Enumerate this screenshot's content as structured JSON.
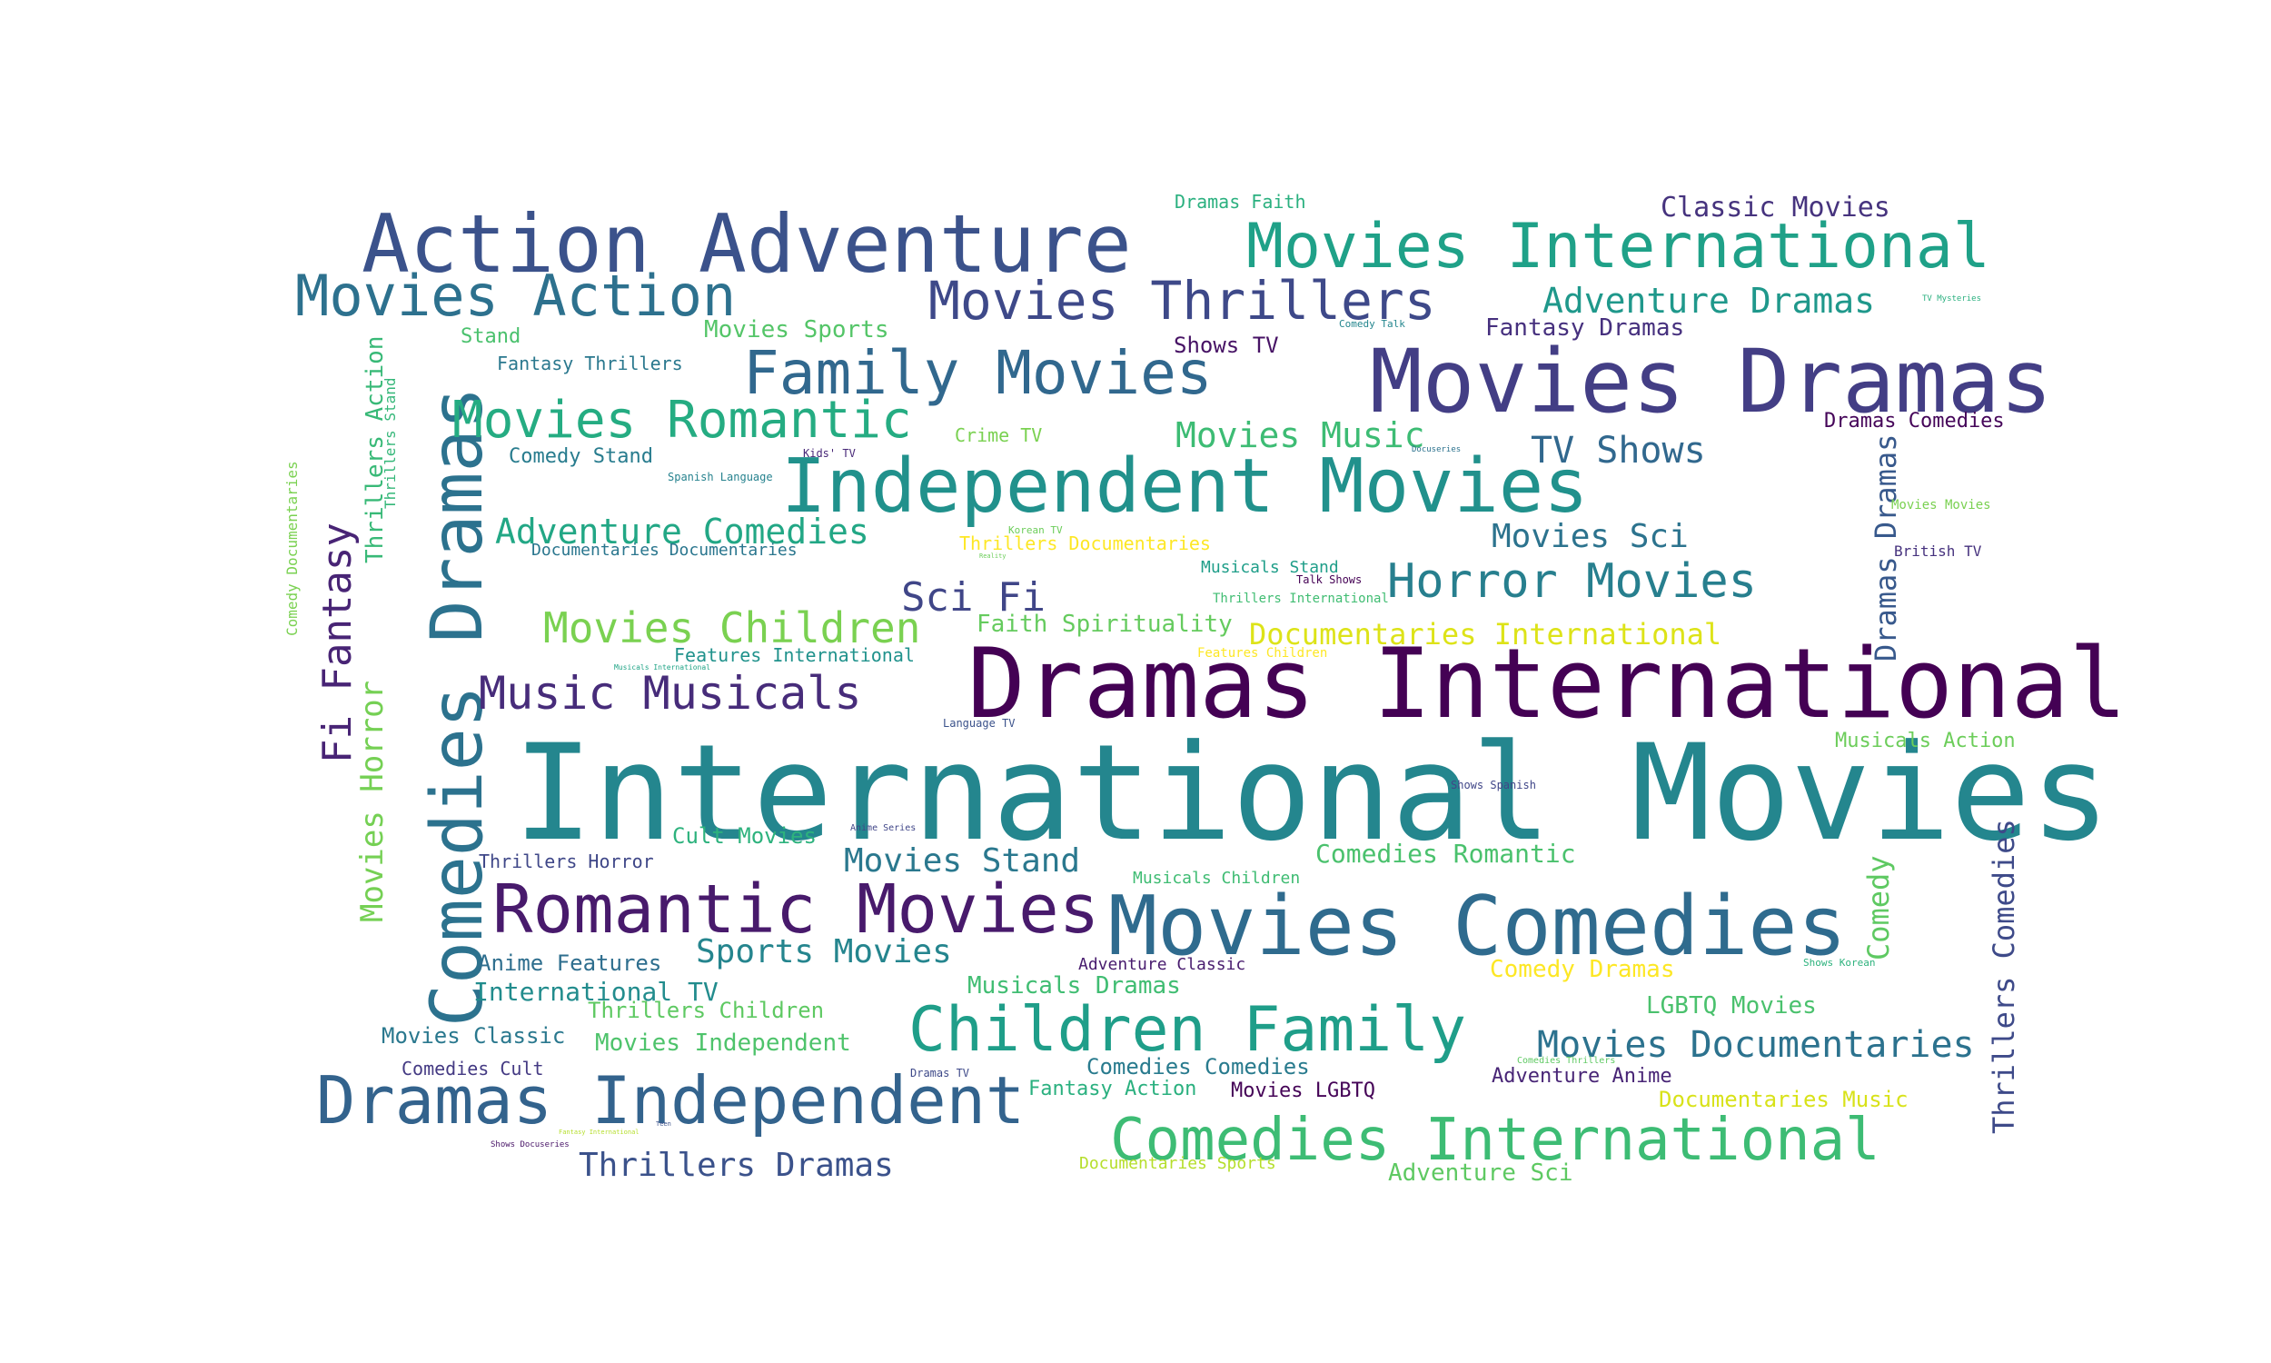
{
  "words": [
    {
      "text": "International Movies",
      "color": "#24868e"
    },
    {
      "text": "Dramas International",
      "color": "#440154"
    },
    {
      "text": "Movies Dramas",
      "color": "#433e85"
    },
    {
      "text": "Movies Comedies",
      "color": "#2f6b8e"
    },
    {
      "text": "Action Adventure",
      "color": "#3b528b"
    },
    {
      "text": "Independent Movies",
      "color": "#21918c"
    },
    {
      "text": "Comedies Dramas",
      "color": "#2c728e"
    },
    {
      "text": "Movies International",
      "color": "#1fa188"
    },
    {
      "text": "Romantic Movies",
      "color": "#481a6c"
    },
    {
      "text": "Dramas Independent",
      "color": "#33638d"
    },
    {
      "text": "Children Family",
      "color": "#1f9e89"
    },
    {
      "text": "Comedies International",
      "color": "#3dbc74"
    },
    {
      "text": "Family Movies",
      "color": "#31688e"
    },
    {
      "text": "Movies Thrillers",
      "color": "#3e4989"
    },
    {
      "text": "Movies Action",
      "color": "#2d718e"
    },
    {
      "text": "Movies Romantic",
      "color": "#25ac82"
    },
    {
      "text": "Music Musicals",
      "color": "#472c7a"
    },
    {
      "text": "Horror Movies",
      "color": "#277f8e"
    },
    {
      "text": "Movies Children",
      "color": "#7ad151"
    },
    {
      "text": "Sci Fi",
      "color": "#404688"
    },
    {
      "text": "Movies Documentaries",
      "color": "#2c728e"
    },
    {
      "text": "Fi Fantasy",
      "color": "#482475"
    },
    {
      "text": "Adventure Comedies",
      "color": "#22a785"
    },
    {
      "text": "Movies Horror",
      "color": "#75d054"
    },
    {
      "text": "Thrillers Comedies",
      "color": "#3e4a89"
    },
    {
      "text": "Dramas Dramas",
      "color": "#38598c"
    },
    {
      "text": "Sports Movies",
      "color": "#25858e"
    },
    {
      "text": "Movies Stand",
      "color": "#2a788e"
    },
    {
      "text": "Thrillers Dramas",
      "color": "#3b528b"
    },
    {
      "text": "TV Shows",
      "color": "#31688e"
    },
    {
      "text": "Movies Sci",
      "color": "#2c738e"
    },
    {
      "text": "Adventure Dramas",
      "color": "#1f988b"
    },
    {
      "text": "Documentaries International",
      "color": "#dde318"
    },
    {
      "text": "Movies Music",
      "color": "#3dbc74"
    },
    {
      "text": "Comedy",
      "color": "#5ec962"
    },
    {
      "text": "Classic Movies",
      "color": "#46337e"
    },
    {
      "text": "Comedies Romantic",
      "color": "#4ac16d"
    },
    {
      "text": "International TV",
      "color": "#228c8d"
    },
    {
      "text": "Movies Independent",
      "color": "#4ec36b"
    },
    {
      "text": "Faith Spirituality",
      "color": "#65cb5e"
    },
    {
      "text": "Thrillers Action",
      "color": "#38b977"
    },
    {
      "text": "Comedy Dramas",
      "color": "#fde725"
    },
    {
      "text": "Anime Features",
      "color": "#2e6e8e"
    },
    {
      "text": "Musicals Dramas",
      "color": "#40bd72"
    },
    {
      "text": "LGBTQ Movies",
      "color": "#4ac16d"
    },
    {
      "text": "Movies Sports",
      "color": "#54c568"
    },
    {
      "text": "Fantasy Dramas",
      "color": "#46307e"
    },
    {
      "text": "Thrillers Children",
      "color": "#5ec962"
    },
    {
      "text": "Movies Classic",
      "color": "#2a788e"
    },
    {
      "text": "Comedies Comedies",
      "color": "#297b8e"
    },
    {
      "text": "Documentaries Music",
      "color": "#d8e219"
    },
    {
      "text": "Cult Movies",
      "color": "#2db27d"
    },
    {
      "text": "Adventure Anime",
      "color": "#482576"
    },
    {
      "text": "Adventure Sci",
      "color": "#5ec962"
    },
    {
      "text": "Fantasy Action",
      "color": "#2ab07f"
    },
    {
      "text": "Shows TV",
      "color": "#471365"
    },
    {
      "text": "Musicals Action",
      "color": "#6ccd5a"
    },
    {
      "text": "Dramas Comedies",
      "color": "#450559"
    },
    {
      "text": "Movies LGBTQ",
      "color": "#450457"
    },
    {
      "text": "Thrillers Documentaries",
      "color": "#fde725"
    },
    {
      "text": "Dramas Faith",
      "color": "#2ab07f"
    },
    {
      "text": "Stand",
      "color": "#4ac16d"
    },
    {
      "text": "Documentaries Sports",
      "color": "#b5de2b"
    },
    {
      "text": "Fantasy Thrillers",
      "color": "#2a788e"
    },
    {
      "text": "Comedy Stand",
      "color": "#287c8e"
    },
    {
      "text": "Features International",
      "color": "#20928c"
    },
    {
      "text": "Documentaries Documentaries",
      "color": "#2a768e"
    },
    {
      "text": "Thrillers Horror",
      "color": "#3f4788"
    },
    {
      "text": "Crime TV",
      "color": "#7ad151"
    },
    {
      "text": "Comedies Cult",
      "color": "#443a83"
    },
    {
      "text": "Adventure Classic",
      "color": "#481c6e"
    },
    {
      "text": "Musicals Children",
      "color": "#3fbc73"
    },
    {
      "text": "Musicals Stand",
      "color": "#1f9e89"
    },
    {
      "text": "British TV",
      "color": "#46327e"
    },
    {
      "text": "Thrillers Stand",
      "color": "#35b779"
    },
    {
      "text": "Comedy Documentaries",
      "color": "#7ad151"
    },
    {
      "text": "Thrillers International",
      "color": "#40bd72"
    },
    {
      "text": "Movies Movies",
      "color": "#7ad151"
    },
    {
      "text": "Features Children",
      "color": "#fde725"
    },
    {
      "text": "Spanish Language",
      "color": "#26828e"
    },
    {
      "text": "Kids' TV",
      "color": "#482878"
    },
    {
      "text": "Talk Shows",
      "color": "#440154"
    },
    {
      "text": "Comedy Talk",
      "color": "#24868e"
    },
    {
      "text": "TV Mysteries",
      "color": "#2ab07f"
    },
    {
      "text": "Korean TV",
      "color": "#6ccd5a"
    },
    {
      "text": "Language TV",
      "color": "#3b528b"
    },
    {
      "text": "Shows Spanish",
      "color": "#404688"
    },
    {
      "text": "Anime Series",
      "color": "#404688"
    },
    {
      "text": "Dramas TV",
      "color": "#3e4989"
    },
    {
      "text": "Shows Korean",
      "color": "#2db27d"
    },
    {
      "text": "Comedies Thrillers",
      "color": "#5ec962"
    },
    {
      "text": "Docuseries",
      "color": "#2c728e"
    },
    {
      "text": "Musicals International",
      "color": "#20a486"
    },
    {
      "text": "Shows Docuseries",
      "color": "#481467"
    },
    {
      "text": "Fantasy International",
      "color": "#b5de2b"
    },
    {
      "text": "Teen",
      "color": "#3b528b"
    },
    {
      "text": "Reality",
      "color": "#6ccd5a"
    }
  ]
}
